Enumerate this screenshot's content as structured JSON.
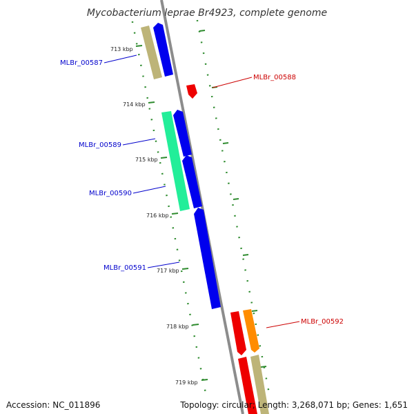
{
  "title": "Mycobacterium leprae Br4923, complete genome",
  "accession_text": "Accession: NC_011896",
  "stats_text": "Topology: circular; Length: 3,268,071 bp; Genes: 1,651",
  "colors": {
    "backbone": "#8c8c8c",
    "tick": "#2e8b2e",
    "forward_label": "#0000cc",
    "reverse_label": "#cc0000",
    "blue": "#0000ee",
    "khaki": "#bdb478",
    "green": "#22ee99",
    "red": "#ee0000",
    "orange": "#ff8c00"
  },
  "kbp_labels": [
    "713 kbp",
    "714 kbp",
    "715 kbp",
    "716 kbp",
    "717 kbp",
    "718 kbp",
    "719 kbp"
  ],
  "gene_labels": [
    {
      "id": "MLBr_00587",
      "strand": "forward"
    },
    {
      "id": "MLBr_00588",
      "strand": "reverse"
    },
    {
      "id": "MLBr_00589",
      "strand": "forward"
    },
    {
      "id": "MLBr_00590",
      "strand": "forward"
    },
    {
      "id": "MLBr_00591",
      "strand": "forward"
    },
    {
      "id": "MLBr_00592",
      "strand": "reverse"
    }
  ],
  "features": [
    {
      "track": "outer",
      "color": "khaki",
      "strand": "plus"
    },
    {
      "track": "inner",
      "color": "blue",
      "strand": "plus"
    },
    {
      "track": "reverse",
      "color": "red",
      "strand": "minus"
    },
    {
      "track": "outer",
      "color": "green",
      "strand": "plus"
    },
    {
      "track": "inner",
      "color": "blue",
      "strand": "plus"
    },
    {
      "track": "inner",
      "color": "blue",
      "strand": "plus"
    },
    {
      "track": "inner",
      "color": "blue",
      "strand": "plus"
    },
    {
      "track": "reverse",
      "color": "red",
      "strand": "minus"
    },
    {
      "track": "reverse_outer",
      "color": "orange",
      "strand": "minus"
    },
    {
      "track": "reverse",
      "color": "red",
      "strand": "minus"
    },
    {
      "track": "reverse_outer",
      "color": "khaki",
      "strand": "minus"
    }
  ]
}
